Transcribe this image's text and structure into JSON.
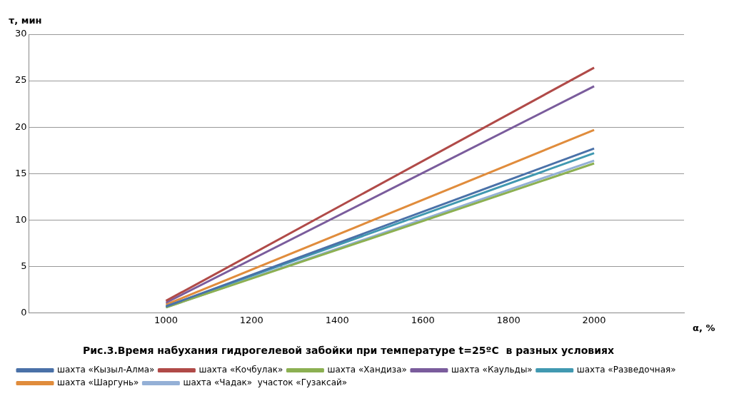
{
  "chart_data": {
    "type": "line",
    "title": "Рис.3.Время набухания гидрогелевой забойки при температуре t=25ºC  в разных условиях",
    "xlabel": "α, %",
    "ylabel": "τ, мин",
    "x": [
      1000,
      2000
    ],
    "series": [
      {
        "name": "шахта «Кызыл-Алма»",
        "color": "#4a71a8",
        "values": [
          0.7,
          17.7
        ]
      },
      {
        "name": "шахта «Кочбулак»",
        "color": "#b04a48",
        "values": [
          1.3,
          26.4
        ]
      },
      {
        "name": "шахта «Хандиза»",
        "color": "#8cb052",
        "values": [
          0.6,
          16.1
        ]
      },
      {
        "name": "шахта «Каульды»",
        "color": "#7a5c9c",
        "values": [
          1.1,
          24.4
        ]
      },
      {
        "name": "шахта «Разведочная»",
        "color": "#4199b1",
        "values": [
          0.7,
          17.2
        ]
      },
      {
        "name": "шахта «Шаргунь»",
        "color": "#e08c3c",
        "values": [
          0.9,
          19.7
        ]
      },
      {
        "name": "шахта «Чадак»  участок «Гузаксай»",
        "color": "#94b0d6",
        "values": [
          0.6,
          16.4
        ]
      }
    ],
    "xlim": [
      680,
      2210
    ],
    "xticks": [
      1000,
      1200,
      1400,
      1600,
      1800,
      2000
    ],
    "ylim": [
      0,
      30
    ],
    "yticks": [
      0,
      5,
      10,
      15,
      20,
      25,
      30
    ],
    "grid": "y",
    "legend": "bottom",
    "marker": "none",
    "line_style": "solid"
  }
}
